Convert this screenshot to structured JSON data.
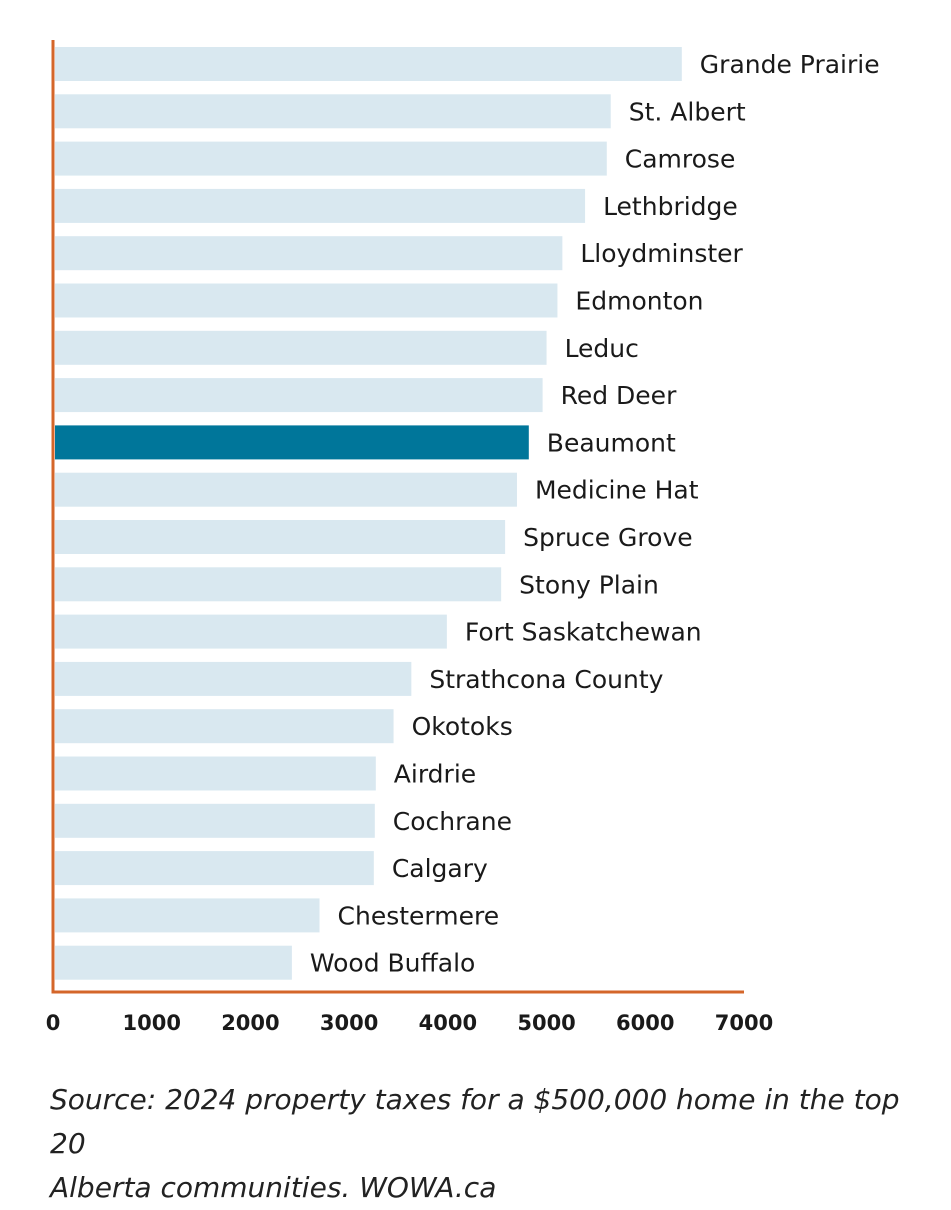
{
  "chart_data": {
    "type": "bar",
    "orientation": "horizontal",
    "categories": [
      "Grande Prairie",
      "St. Albert",
      "Camrose",
      "Lethbridge",
      "Lloydminster",
      "Edmonton",
      "Leduc",
      "Red Deer",
      "Beaumont",
      "Medicine Hat",
      "Spruce Grove",
      "Stony Plain",
      "Fort Saskatchewan",
      "Strathcona County",
      "Okotoks",
      "Airdrie",
      "Cochrane",
      "Calgary",
      "Chestermere",
      "Wood Buffalo"
    ],
    "values": [
      6370,
      5650,
      5610,
      5390,
      5160,
      5110,
      5000,
      4960,
      4820,
      4700,
      4580,
      4540,
      3990,
      3630,
      3450,
      3270,
      3260,
      3250,
      2700,
      2420
    ],
    "highlight": "Beaumont",
    "colors": {
      "bar": "#d9e8f0",
      "highlight": "#00769a",
      "axis": "#d4662a"
    },
    "xlim": [
      0,
      7000
    ],
    "xticks": [
      0,
      1000,
      2000,
      3000,
      4000,
      5000,
      6000,
      7000
    ],
    "title": "",
    "xlabel": "",
    "ylabel": "",
    "grid": false
  },
  "source_lines": [
    "Source:  2024 property taxes for a $500,000 home in the top 20",
    "Alberta communities. WOWA.ca"
  ]
}
